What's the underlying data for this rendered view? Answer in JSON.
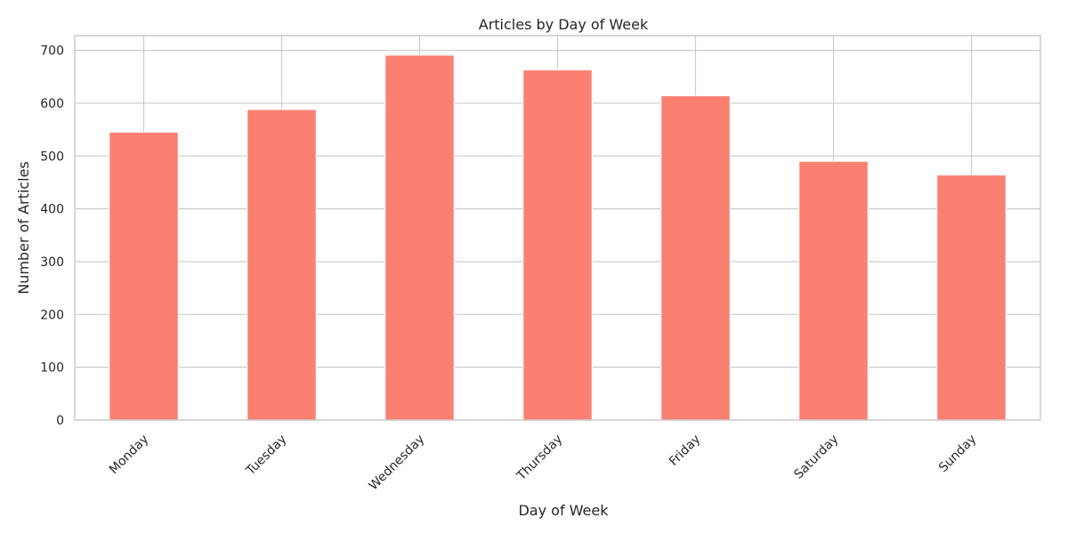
{
  "chart_data": {
    "type": "bar",
    "title": "Articles by Day of Week",
    "xlabel": "Day of Week",
    "ylabel": "Number of Articles",
    "categories": [
      "Monday",
      "Tuesday",
      "Wednesday",
      "Thursday",
      "Friday",
      "Saturday",
      "Sunday"
    ],
    "values": [
      545,
      588,
      691,
      663,
      614,
      490,
      464
    ],
    "ylim": [
      0,
      728
    ],
    "yticks": [
      0,
      100,
      200,
      300,
      400,
      500,
      600,
      700
    ],
    "grid": true,
    "bar_color": "#fa8072",
    "grid_color": "#cccccc",
    "xtick_rotation": 45
  }
}
